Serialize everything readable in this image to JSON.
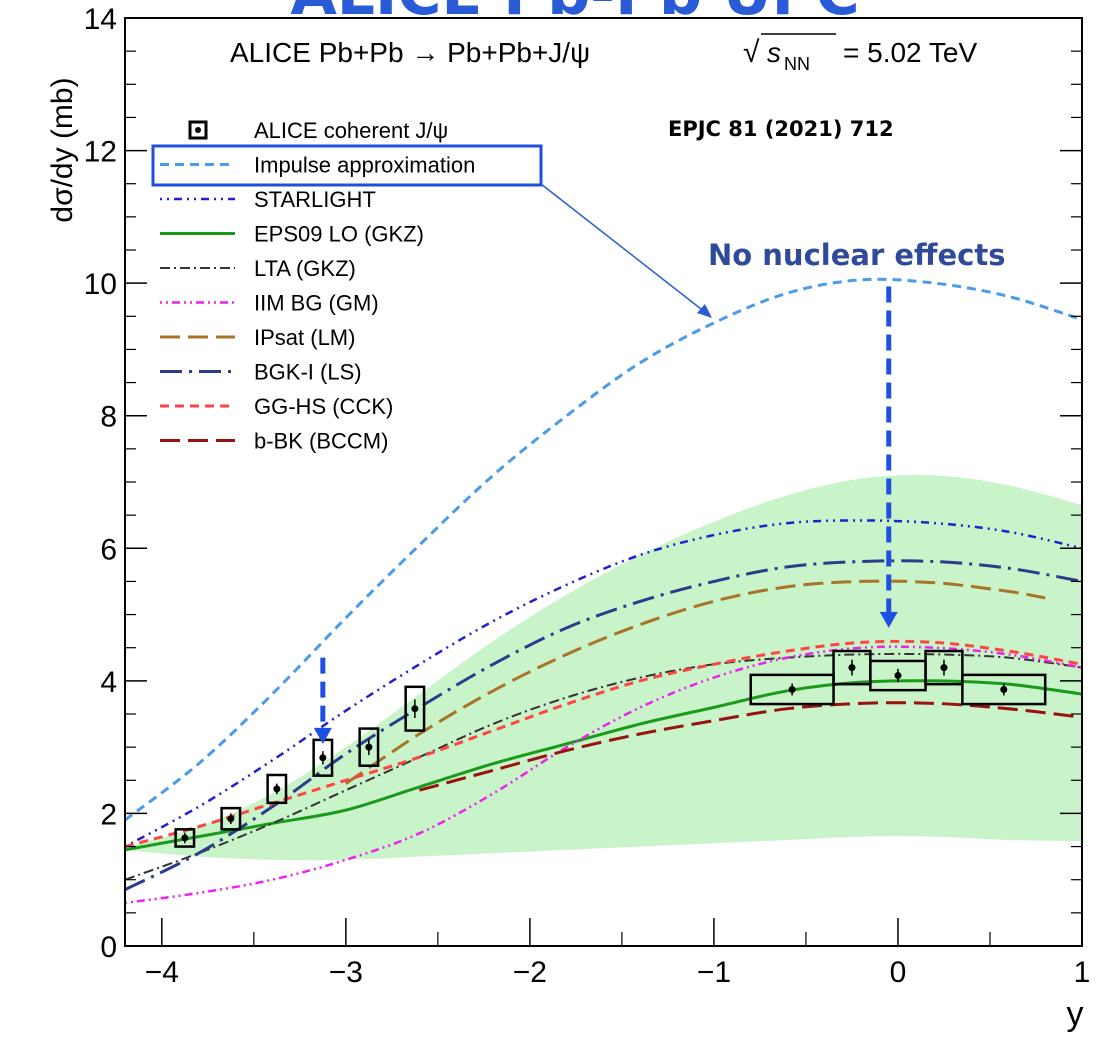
{
  "banner": {
    "text": "ALICE Pb-Pb UPC",
    "color": "#2a5bd7"
  },
  "header": {
    "process": "ALICE Pb+Pb → Pb+Pb+J/ψ",
    "energy_sqrt": "√",
    "energy_s": "s",
    "energy_sub": "NN",
    "energy_value": "= 5.02 TeV"
  },
  "reference": "EPJC 81 (2021) 712",
  "annotation": {
    "text": "No nuclear effects",
    "color": "#2f4a9a"
  },
  "arrow_color": "#1f4fe0",
  "chart_data": {
    "type": "line",
    "title": "",
    "xlabel": "y",
    "ylabel": "dσ/dy (mb)",
    "xlim": [
      -4.2,
      1
    ],
    "ylim": [
      0,
      14
    ],
    "x_ticks": [
      "−4",
      "−3",
      "−2",
      "−1",
      "0",
      "1"
    ],
    "x_tick_values": [
      -4,
      -3,
      -2,
      -1,
      0,
      1
    ],
    "y_ticks": [
      "0",
      "2",
      "4",
      "6",
      "8",
      "10",
      "12",
      "14"
    ],
    "y_tick_values": [
      0,
      2,
      4,
      6,
      8,
      10,
      12,
      14
    ],
    "legend_position": "top-left",
    "band": {
      "color": "#c9f3c9",
      "upper": [
        [
          -4.2,
          1.5
        ],
        [
          -3.8,
          1.8
        ],
        [
          -3.4,
          2.3
        ],
        [
          -3.0,
          3.0
        ],
        [
          -2.6,
          3.8
        ],
        [
          -2.2,
          4.6
        ],
        [
          -1.8,
          5.3
        ],
        [
          -1.4,
          5.9
        ],
        [
          -1.0,
          6.4
        ],
        [
          -0.6,
          6.8
        ],
        [
          -0.2,
          7.05
        ],
        [
          0.2,
          7.1
        ],
        [
          0.6,
          6.95
        ],
        [
          1.0,
          6.65
        ]
      ],
      "lower": [
        [
          -4.2,
          1.45
        ],
        [
          -3.8,
          1.35
        ],
        [
          -3.4,
          1.3
        ],
        [
          -3.0,
          1.3
        ],
        [
          -2.6,
          1.35
        ],
        [
          -2.2,
          1.4
        ],
        [
          -1.8,
          1.45
        ],
        [
          -1.4,
          1.5
        ],
        [
          -1.0,
          1.55
        ],
        [
          -0.6,
          1.6
        ],
        [
          -0.2,
          1.65
        ],
        [
          0.2,
          1.65
        ],
        [
          0.6,
          1.6
        ],
        [
          1.0,
          1.58
        ]
      ]
    },
    "series": [
      {
        "name": "Impulse approximation",
        "color": "#4a9be8",
        "dash": "9,6",
        "width": 3,
        "points": [
          [
            -4.2,
            1.9
          ],
          [
            -3.8,
            2.75
          ],
          [
            -3.4,
            3.8
          ],
          [
            -3.0,
            4.95
          ],
          [
            -2.6,
            6.05
          ],
          [
            -2.2,
            7.1
          ],
          [
            -1.8,
            8.0
          ],
          [
            -1.4,
            8.8
          ],
          [
            -1.0,
            9.4
          ],
          [
            -0.6,
            9.85
          ],
          [
            -0.2,
            10.05
          ],
          [
            0.2,
            10.0
          ],
          [
            0.6,
            9.8
          ],
          [
            1.0,
            9.45
          ]
        ]
      },
      {
        "name": "STARLIGHT",
        "color": "#2222cc",
        "dash": "2,5,2,5,8,5",
        "width": 2.5,
        "points": [
          [
            -4.2,
            1.5
          ],
          [
            -3.8,
            2.1
          ],
          [
            -3.4,
            2.8
          ],
          [
            -3.0,
            3.55
          ],
          [
            -2.6,
            4.25
          ],
          [
            -2.2,
            4.9
          ],
          [
            -1.8,
            5.45
          ],
          [
            -1.4,
            5.9
          ],
          [
            -1.0,
            6.2
          ],
          [
            -0.6,
            6.38
          ],
          [
            -0.2,
            6.42
          ],
          [
            0.2,
            6.38
          ],
          [
            0.6,
            6.25
          ],
          [
            1.0,
            6.0
          ]
        ]
      },
      {
        "name": "EPS09 LO (GKZ)",
        "color": "#1a9a1a",
        "dash": "",
        "width": 3,
        "points": [
          [
            -4.2,
            1.45
          ],
          [
            -3.8,
            1.65
          ],
          [
            -3.4,
            1.85
          ],
          [
            -3.0,
            2.05
          ],
          [
            -2.6,
            2.4
          ],
          [
            -2.2,
            2.75
          ],
          [
            -1.8,
            3.05
          ],
          [
            -1.4,
            3.35
          ],
          [
            -1.0,
            3.6
          ],
          [
            -0.6,
            3.85
          ],
          [
            -0.2,
            3.98
          ],
          [
            0.2,
            4.0
          ],
          [
            0.6,
            3.95
          ],
          [
            1.0,
            3.8
          ]
        ]
      },
      {
        "name": "LTA (GKZ)",
        "color": "#333333",
        "dash": "10,4,2,4",
        "width": 2,
        "points": [
          [
            -4.2,
            1.0
          ],
          [
            -3.8,
            1.4
          ],
          [
            -3.4,
            1.85
          ],
          [
            -3.0,
            2.35
          ],
          [
            -2.6,
            2.85
          ],
          [
            -2.2,
            3.35
          ],
          [
            -1.8,
            3.75
          ],
          [
            -1.4,
            4.05
          ],
          [
            -1.0,
            4.25
          ],
          [
            -0.6,
            4.35
          ],
          [
            -0.2,
            4.4
          ],
          [
            0.2,
            4.4
          ],
          [
            0.6,
            4.35
          ],
          [
            1.0,
            4.2
          ]
        ]
      },
      {
        "name": "IIM BG (GM)",
        "color": "#ee22ee",
        "dash": "2,4,2,4,8,4",
        "width": 2.5,
        "points": [
          [
            -4.2,
            0.65
          ],
          [
            -3.8,
            0.8
          ],
          [
            -3.4,
            1.0
          ],
          [
            -3.0,
            1.3
          ],
          [
            -2.6,
            1.7
          ],
          [
            -2.2,
            2.3
          ],
          [
            -1.8,
            3.0
          ],
          [
            -1.4,
            3.6
          ],
          [
            -1.0,
            4.05
          ],
          [
            -0.6,
            4.35
          ],
          [
            -0.2,
            4.5
          ],
          [
            0.2,
            4.5
          ],
          [
            0.6,
            4.4
          ],
          [
            1.0,
            4.2
          ]
        ]
      },
      {
        "name": "IPsat (LM)",
        "color": "#a8742a",
        "dash": "20,8",
        "width": 3,
        "points": [
          [
            -3.0,
            2.45
          ],
          [
            -2.6,
            3.2
          ],
          [
            -2.2,
            3.85
          ],
          [
            -1.8,
            4.4
          ],
          [
            -1.4,
            4.85
          ],
          [
            -1.0,
            5.2
          ],
          [
            -0.6,
            5.42
          ],
          [
            -0.2,
            5.5
          ],
          [
            0.2,
            5.48
          ],
          [
            0.6,
            5.35
          ],
          [
            0.8,
            5.25
          ]
        ]
      },
      {
        "name": "BGK-I (LS)",
        "color": "#2c3c8c",
        "dash": "22,7,3,7",
        "width": 3,
        "points": [
          [
            -4.2,
            0.85
          ],
          [
            -3.8,
            1.4
          ],
          [
            -3.4,
            2.1
          ],
          [
            -3.0,
            2.9
          ],
          [
            -2.6,
            3.6
          ],
          [
            -2.2,
            4.25
          ],
          [
            -1.8,
            4.8
          ],
          [
            -1.4,
            5.2
          ],
          [
            -1.0,
            5.5
          ],
          [
            -0.6,
            5.72
          ],
          [
            -0.2,
            5.8
          ],
          [
            0.2,
            5.8
          ],
          [
            0.6,
            5.7
          ],
          [
            1.0,
            5.5
          ]
        ]
      },
      {
        "name": "GG-HS (CCK)",
        "color": "#ff4444",
        "dash": "9,6",
        "width": 3,
        "points": [
          [
            -4.2,
            1.5
          ],
          [
            -3.8,
            1.8
          ],
          [
            -3.4,
            2.15
          ],
          [
            -3.0,
            2.5
          ],
          [
            -2.6,
            2.85
          ],
          [
            -2.2,
            3.25
          ],
          [
            -1.8,
            3.65
          ],
          [
            -1.4,
            4.0
          ],
          [
            -1.0,
            4.25
          ],
          [
            -0.6,
            4.45
          ],
          [
            -0.2,
            4.58
          ],
          [
            0.2,
            4.58
          ],
          [
            0.6,
            4.45
          ],
          [
            1.0,
            4.25
          ]
        ]
      },
      {
        "name": "b-BK (BCCM)",
        "color": "#991111",
        "dash": "20,8",
        "width": 3,
        "points": [
          [
            -2.6,
            2.35
          ],
          [
            -2.2,
            2.65
          ],
          [
            -1.8,
            2.95
          ],
          [
            -1.4,
            3.2
          ],
          [
            -1.0,
            3.4
          ],
          [
            -0.6,
            3.58
          ],
          [
            -0.2,
            3.66
          ],
          [
            0.2,
            3.66
          ],
          [
            0.6,
            3.58
          ],
          [
            1.0,
            3.45
          ]
        ]
      }
    ],
    "data_points": {
      "name": "ALICE coherent J/ψ",
      "points": [
        {
          "x": -3.875,
          "y": 1.63,
          "xw": 0.05,
          "syst": 0.13,
          "stat": 0.08
        },
        {
          "x": -3.625,
          "y": 1.92,
          "xw": 0.05,
          "syst": 0.16,
          "stat": 0.08
        },
        {
          "x": -3.375,
          "y": 2.37,
          "xw": 0.05,
          "syst": 0.21,
          "stat": 0.08
        },
        {
          "x": -3.125,
          "y": 2.84,
          "xw": 0.05,
          "syst": 0.27,
          "stat": 0.1
        },
        {
          "x": -2.875,
          "y": 3.0,
          "xw": 0.05,
          "syst": 0.28,
          "stat": 0.12
        },
        {
          "x": -2.625,
          "y": 3.58,
          "xw": 0.05,
          "syst": 0.33,
          "stat": 0.14
        },
        {
          "x": -0.575,
          "y": 3.87,
          "xw": 0.225,
          "syst": 0.22,
          "stat": 0.09
        },
        {
          "x": -0.25,
          "y": 4.2,
          "xw": 0.1,
          "syst": 0.25,
          "stat": 0.12
        },
        {
          "x": 0.0,
          "y": 4.08,
          "xw": 0.15,
          "syst": 0.22,
          "stat": 0.1
        },
        {
          "x": 0.25,
          "y": 4.2,
          "xw": 0.1,
          "syst": 0.25,
          "stat": 0.12
        },
        {
          "x": 0.575,
          "y": 3.87,
          "xw": 0.225,
          "syst": 0.22,
          "stat": 0.09
        }
      ]
    },
    "arrows": [
      {
        "x": -3.125,
        "from": 4.35,
        "to": 3.05
      },
      {
        "x": -0.05,
        "from": 9.95,
        "to": 4.8
      }
    ]
  }
}
